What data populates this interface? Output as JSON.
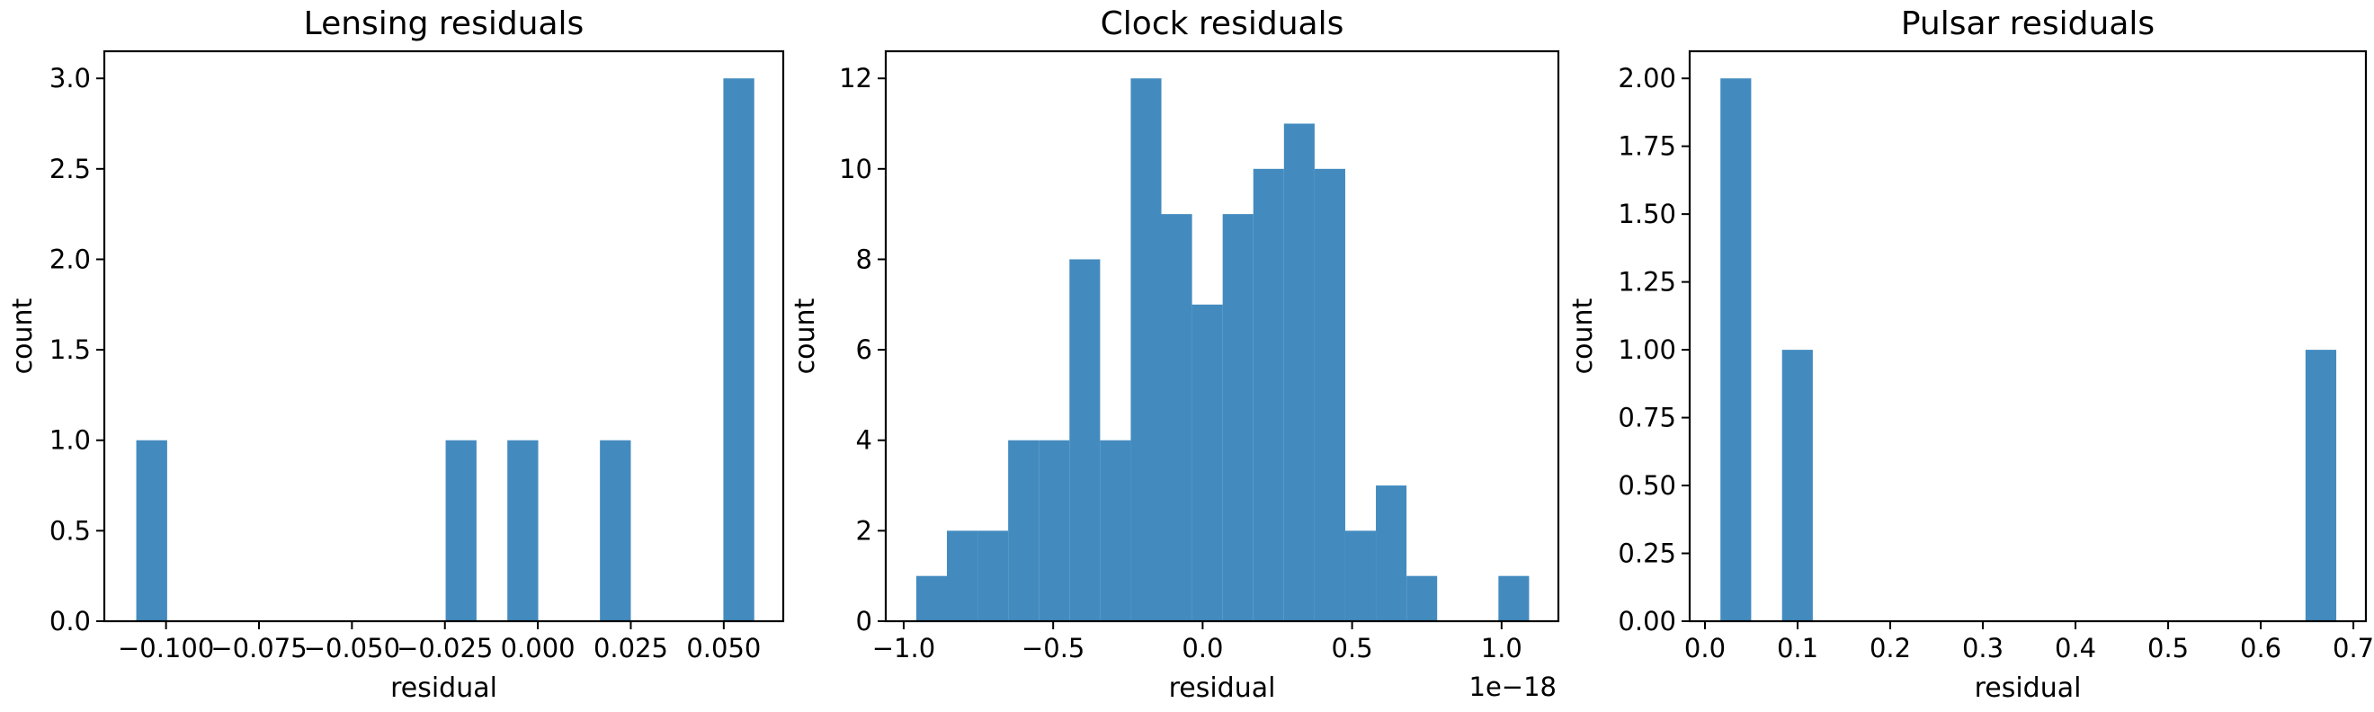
{
  "chart_data": [
    {
      "type": "bar",
      "title": "Lensing residuals",
      "xlabel": "residual",
      "ylabel": "count",
      "xlim": [
        -0.1166,
        0.066
      ],
      "ylim": [
        0,
        3.15
      ],
      "xticks": [
        -0.1,
        -0.075,
        -0.05,
        -0.025,
        0.0,
        0.025,
        0.05
      ],
      "xtick_labels": [
        "−0.100",
        "−0.075",
        "−0.050",
        "−0.025",
        "0.000",
        "0.025",
        "0.050"
      ],
      "yticks": [
        0,
        0.5,
        1.0,
        1.5,
        2.0,
        2.5,
        3.0
      ],
      "ytick_labels": [
        "0.0",
        "0.5",
        "1.0",
        "1.5",
        "2.0",
        "2.5",
        "3.0"
      ],
      "bins": [
        {
          "x0": -0.108,
          "x1": -0.0997,
          "count": 1
        },
        {
          "x0": -0.0248,
          "x1": -0.0165,
          "count": 1
        },
        {
          "x0": -0.0082,
          "x1": 0.0001,
          "count": 1
        },
        {
          "x0": 0.0167,
          "x1": 0.025,
          "count": 1
        },
        {
          "x0": 0.0499,
          "x1": 0.0582,
          "count": 3
        }
      ],
      "offset_text": ""
    },
    {
      "type": "bar",
      "title": "Clock residuals",
      "xlabel": "residual",
      "ylabel": "count",
      "xlim": [
        -1.06,
        1.19
      ],
      "ylim": [
        0,
        12.6
      ],
      "xticks": [
        -1.0,
        -0.5,
        0.0,
        0.5,
        1.0
      ],
      "xtick_labels": [
        "−1.0",
        "−0.5",
        "0.0",
        "0.5",
        "1.0"
      ],
      "yticks": [
        0,
        2,
        4,
        6,
        8,
        10,
        12
      ],
      "ytick_labels": [
        "0",
        "2",
        "4",
        "6",
        "8",
        "10",
        "12"
      ],
      "bin_start": -0.958,
      "bin_width": 0.1025,
      "counts": [
        1,
        2,
        2,
        4,
        4,
        8,
        4,
        12,
        9,
        7,
        9,
        10,
        11,
        10,
        2,
        3,
        1,
        0,
        0,
        1
      ],
      "offset_text": "1e−18"
    },
    {
      "type": "bar",
      "title": "Pulsar residuals",
      "xlabel": "residual",
      "ylabel": "count",
      "xlim": [
        -0.0165,
        0.7135
      ],
      "ylim": [
        0,
        2.1
      ],
      "xticks": [
        0.0,
        0.1,
        0.2,
        0.3,
        0.4,
        0.5,
        0.6,
        0.7
      ],
      "xtick_labels": [
        "0.0",
        "0.1",
        "0.2",
        "0.3",
        "0.4",
        "0.5",
        "0.6",
        "0.7"
      ],
      "yticks": [
        0,
        0.25,
        0.5,
        0.75,
        1.0,
        1.25,
        1.5,
        1.75,
        2.0
      ],
      "ytick_labels": [
        "0.00",
        "0.25",
        "0.50",
        "0.75",
        "1.00",
        "1.25",
        "1.50",
        "1.75",
        "2.00"
      ],
      "bins": [
        {
          "x0": 0.0167,
          "x1": 0.0499,
          "count": 2
        },
        {
          "x0": 0.0832,
          "x1": 0.1164,
          "count": 1
        },
        {
          "x0": 0.6483,
          "x1": 0.6815,
          "count": 1
        }
      ],
      "offset_text": ""
    }
  ],
  "colors": {
    "bar": "#438bbf",
    "axes": "#000000",
    "background": "#ffffff"
  }
}
